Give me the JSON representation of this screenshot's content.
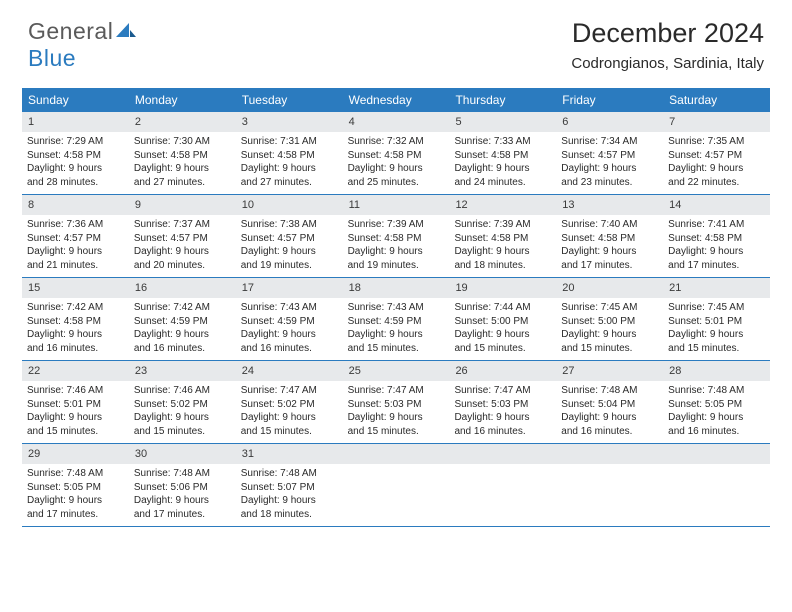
{
  "logo": {
    "general": "General",
    "blue": "Blue"
  },
  "title": "December 2024",
  "location": "Codrongianos, Sardinia, Italy",
  "colors": {
    "header_bg": "#2b7bbf",
    "header_text": "#ffffff",
    "daynum_bg": "#e7e9eb",
    "text": "#2a2a2a",
    "rule": "#2b7bbf"
  },
  "dayNames": [
    "Sunday",
    "Monday",
    "Tuesday",
    "Wednesday",
    "Thursday",
    "Friday",
    "Saturday"
  ],
  "days": [
    {
      "n": "1",
      "sun": "Sunrise: 7:29 AM",
      "set": "Sunset: 4:58 PM",
      "dl1": "Daylight: 9 hours",
      "dl2": "and 28 minutes."
    },
    {
      "n": "2",
      "sun": "Sunrise: 7:30 AM",
      "set": "Sunset: 4:58 PM",
      "dl1": "Daylight: 9 hours",
      "dl2": "and 27 minutes."
    },
    {
      "n": "3",
      "sun": "Sunrise: 7:31 AM",
      "set": "Sunset: 4:58 PM",
      "dl1": "Daylight: 9 hours",
      "dl2": "and 27 minutes."
    },
    {
      "n": "4",
      "sun": "Sunrise: 7:32 AM",
      "set": "Sunset: 4:58 PM",
      "dl1": "Daylight: 9 hours",
      "dl2": "and 25 minutes."
    },
    {
      "n": "5",
      "sun": "Sunrise: 7:33 AM",
      "set": "Sunset: 4:58 PM",
      "dl1": "Daylight: 9 hours",
      "dl2": "and 24 minutes."
    },
    {
      "n": "6",
      "sun": "Sunrise: 7:34 AM",
      "set": "Sunset: 4:57 PM",
      "dl1": "Daylight: 9 hours",
      "dl2": "and 23 minutes."
    },
    {
      "n": "7",
      "sun": "Sunrise: 7:35 AM",
      "set": "Sunset: 4:57 PM",
      "dl1": "Daylight: 9 hours",
      "dl2": "and 22 minutes."
    },
    {
      "n": "8",
      "sun": "Sunrise: 7:36 AM",
      "set": "Sunset: 4:57 PM",
      "dl1": "Daylight: 9 hours",
      "dl2": "and 21 minutes."
    },
    {
      "n": "9",
      "sun": "Sunrise: 7:37 AM",
      "set": "Sunset: 4:57 PM",
      "dl1": "Daylight: 9 hours",
      "dl2": "and 20 minutes."
    },
    {
      "n": "10",
      "sun": "Sunrise: 7:38 AM",
      "set": "Sunset: 4:57 PM",
      "dl1": "Daylight: 9 hours",
      "dl2": "and 19 minutes."
    },
    {
      "n": "11",
      "sun": "Sunrise: 7:39 AM",
      "set": "Sunset: 4:58 PM",
      "dl1": "Daylight: 9 hours",
      "dl2": "and 19 minutes."
    },
    {
      "n": "12",
      "sun": "Sunrise: 7:39 AM",
      "set": "Sunset: 4:58 PM",
      "dl1": "Daylight: 9 hours",
      "dl2": "and 18 minutes."
    },
    {
      "n": "13",
      "sun": "Sunrise: 7:40 AM",
      "set": "Sunset: 4:58 PM",
      "dl1": "Daylight: 9 hours",
      "dl2": "and 17 minutes."
    },
    {
      "n": "14",
      "sun": "Sunrise: 7:41 AM",
      "set": "Sunset: 4:58 PM",
      "dl1": "Daylight: 9 hours",
      "dl2": "and 17 minutes."
    },
    {
      "n": "15",
      "sun": "Sunrise: 7:42 AM",
      "set": "Sunset: 4:58 PM",
      "dl1": "Daylight: 9 hours",
      "dl2": "and 16 minutes."
    },
    {
      "n": "16",
      "sun": "Sunrise: 7:42 AM",
      "set": "Sunset: 4:59 PM",
      "dl1": "Daylight: 9 hours",
      "dl2": "and 16 minutes."
    },
    {
      "n": "17",
      "sun": "Sunrise: 7:43 AM",
      "set": "Sunset: 4:59 PM",
      "dl1": "Daylight: 9 hours",
      "dl2": "and 16 minutes."
    },
    {
      "n": "18",
      "sun": "Sunrise: 7:43 AM",
      "set": "Sunset: 4:59 PM",
      "dl1": "Daylight: 9 hours",
      "dl2": "and 15 minutes."
    },
    {
      "n": "19",
      "sun": "Sunrise: 7:44 AM",
      "set": "Sunset: 5:00 PM",
      "dl1": "Daylight: 9 hours",
      "dl2": "and 15 minutes."
    },
    {
      "n": "20",
      "sun": "Sunrise: 7:45 AM",
      "set": "Sunset: 5:00 PM",
      "dl1": "Daylight: 9 hours",
      "dl2": "and 15 minutes."
    },
    {
      "n": "21",
      "sun": "Sunrise: 7:45 AM",
      "set": "Sunset: 5:01 PM",
      "dl1": "Daylight: 9 hours",
      "dl2": "and 15 minutes."
    },
    {
      "n": "22",
      "sun": "Sunrise: 7:46 AM",
      "set": "Sunset: 5:01 PM",
      "dl1": "Daylight: 9 hours",
      "dl2": "and 15 minutes."
    },
    {
      "n": "23",
      "sun": "Sunrise: 7:46 AM",
      "set": "Sunset: 5:02 PM",
      "dl1": "Daylight: 9 hours",
      "dl2": "and 15 minutes."
    },
    {
      "n": "24",
      "sun": "Sunrise: 7:47 AM",
      "set": "Sunset: 5:02 PM",
      "dl1": "Daylight: 9 hours",
      "dl2": "and 15 minutes."
    },
    {
      "n": "25",
      "sun": "Sunrise: 7:47 AM",
      "set": "Sunset: 5:03 PM",
      "dl1": "Daylight: 9 hours",
      "dl2": "and 15 minutes."
    },
    {
      "n": "26",
      "sun": "Sunrise: 7:47 AM",
      "set": "Sunset: 5:03 PM",
      "dl1": "Daylight: 9 hours",
      "dl2": "and 16 minutes."
    },
    {
      "n": "27",
      "sun": "Sunrise: 7:48 AM",
      "set": "Sunset: 5:04 PM",
      "dl1": "Daylight: 9 hours",
      "dl2": "and 16 minutes."
    },
    {
      "n": "28",
      "sun": "Sunrise: 7:48 AM",
      "set": "Sunset: 5:05 PM",
      "dl1": "Daylight: 9 hours",
      "dl2": "and 16 minutes."
    },
    {
      "n": "29",
      "sun": "Sunrise: 7:48 AM",
      "set": "Sunset: 5:05 PM",
      "dl1": "Daylight: 9 hours",
      "dl2": "and 17 minutes."
    },
    {
      "n": "30",
      "sun": "Sunrise: 7:48 AM",
      "set": "Sunset: 5:06 PM",
      "dl1": "Daylight: 9 hours",
      "dl2": "and 17 minutes."
    },
    {
      "n": "31",
      "sun": "Sunrise: 7:48 AM",
      "set": "Sunset: 5:07 PM",
      "dl1": "Daylight: 9 hours",
      "dl2": "and 18 minutes."
    }
  ]
}
